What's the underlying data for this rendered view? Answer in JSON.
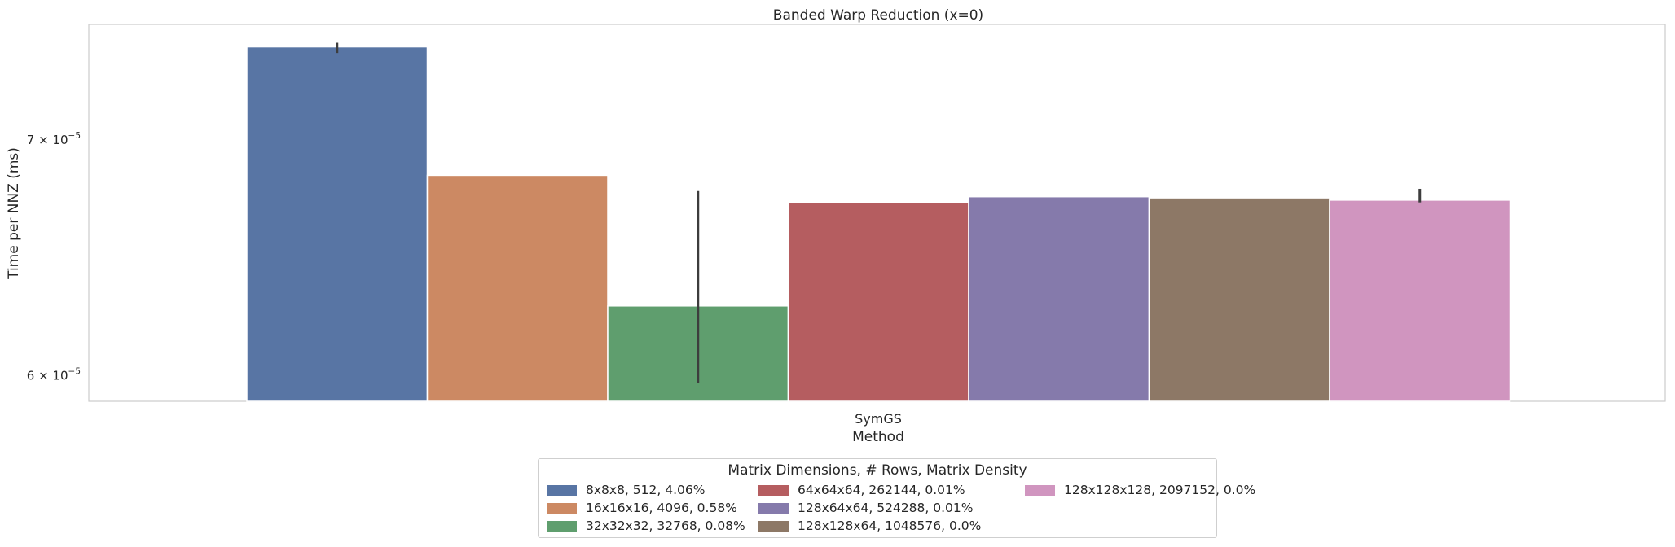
{
  "chart_data": {
    "type": "bar",
    "title": "Banded Warp Reduction (x=0)",
    "xlabel": "Method",
    "ylabel": "Time per NNZ (ms)",
    "yscale": "log",
    "ylim": [
      5.9e-05,
      7.55e-05
    ],
    "categories": [
      "SymGS"
    ],
    "yticks": [
      {
        "value": 7e-05,
        "mantissa": "7",
        "base": "10",
        "exp": "−5"
      },
      {
        "value": 6e-05,
        "mantissa": "6",
        "base": "10",
        "exp": "−5"
      }
    ],
    "grid": false,
    "legend": {
      "title": "Matrix Dimensions, # Rows, Matrix Density",
      "placement": "bottom-center",
      "columns": 3
    },
    "series": [
      {
        "name": "8x8x8, 512, 4.06%",
        "color": "#5875a4",
        "values": [
          7.44e-05
        ],
        "err": [
          7.41e-05,
          7.46e-05
        ]
      },
      {
        "name": "16x16x16, 4096, 0.58%",
        "color": "#cc8963",
        "values": [
          6.84e-05
        ],
        "err": [
          6.84e-05,
          6.84e-05
        ]
      },
      {
        "name": "32x32x32, 32768, 0.08%",
        "color": "#5f9e6e",
        "values": [
          6.28e-05
        ],
        "err": [
          5.97e-05,
          6.77e-05
        ]
      },
      {
        "name": "64x64x64, 262144, 0.01%",
        "color": "#b55d60",
        "values": [
          6.72e-05
        ],
        "err": [
          6.72e-05,
          6.72e-05
        ]
      },
      {
        "name": "128x64x64, 524288, 0.01%",
        "color": "#857aab",
        "values": [
          6.745e-05
        ],
        "err": [
          6.745e-05,
          6.745e-05
        ]
      },
      {
        "name": "128x128x64, 1048576, 0.0%",
        "color": "#8d7866",
        "values": [
          6.74e-05
        ],
        "err": [
          6.74e-05,
          6.74e-05
        ]
      },
      {
        "name": "128x128x128, 2097152, 0.0%",
        "color": "#d095bf",
        "values": [
          6.73e-05
        ],
        "err": [
          6.72e-05,
          6.78e-05
        ]
      }
    ]
  }
}
